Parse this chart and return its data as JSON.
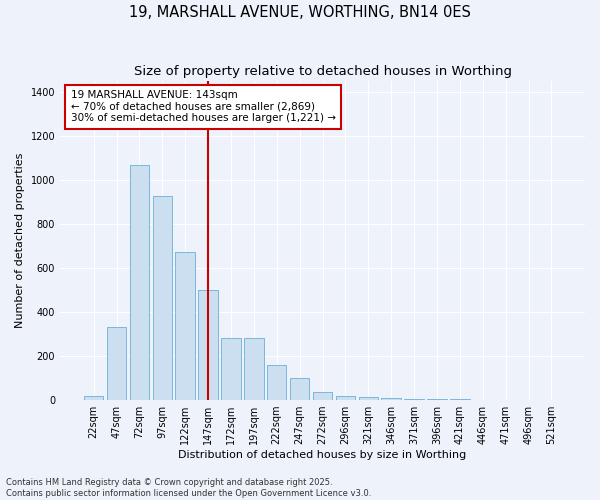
{
  "title": "19, MARSHALL AVENUE, WORTHING, BN14 0ES",
  "subtitle": "Size of property relative to detached houses in Worthing",
  "xlabel": "Distribution of detached houses by size in Worthing",
  "ylabel": "Number of detached properties",
  "categories": [
    "22sqm",
    "47sqm",
    "72sqm",
    "97sqm",
    "122sqm",
    "147sqm",
    "172sqm",
    "197sqm",
    "222sqm",
    "247sqm",
    "272sqm",
    "296sqm",
    "321sqm",
    "346sqm",
    "371sqm",
    "396sqm",
    "421sqm",
    "446sqm",
    "471sqm",
    "496sqm",
    "521sqm"
  ],
  "values": [
    20,
    330,
    1065,
    925,
    670,
    500,
    280,
    280,
    160,
    100,
    35,
    20,
    15,
    10,
    5,
    5,
    5,
    2,
    2,
    2,
    2
  ],
  "bar_color": "#ccdff0",
  "bar_edge_color": "#6baed6",
  "vline_index": 5,
  "vline_color": "#cc0000",
  "annotation_line1": "19 MARSHALL AVENUE: 143sqm",
  "annotation_line2": "← 70% of detached houses are smaller (2,869)",
  "annotation_line3": "30% of semi-detached houses are larger (1,221) →",
  "annotation_box_color": "#ffffff",
  "annotation_box_edge": "#cc0000",
  "ylim": [
    0,
    1450
  ],
  "yticks": [
    0,
    200,
    400,
    600,
    800,
    1000,
    1200,
    1400
  ],
  "background_color": "#eef2fb",
  "grid_color": "#ffffff",
  "footer_text": "Contains HM Land Registry data © Crown copyright and database right 2025.\nContains public sector information licensed under the Open Government Licence v3.0.",
  "title_fontsize": 10.5,
  "subtitle_fontsize": 9.5,
  "ylabel_fontsize": 8,
  "xlabel_fontsize": 8,
  "tick_fontsize": 7,
  "annotation_fontsize": 7.5,
  "footer_fontsize": 6
}
